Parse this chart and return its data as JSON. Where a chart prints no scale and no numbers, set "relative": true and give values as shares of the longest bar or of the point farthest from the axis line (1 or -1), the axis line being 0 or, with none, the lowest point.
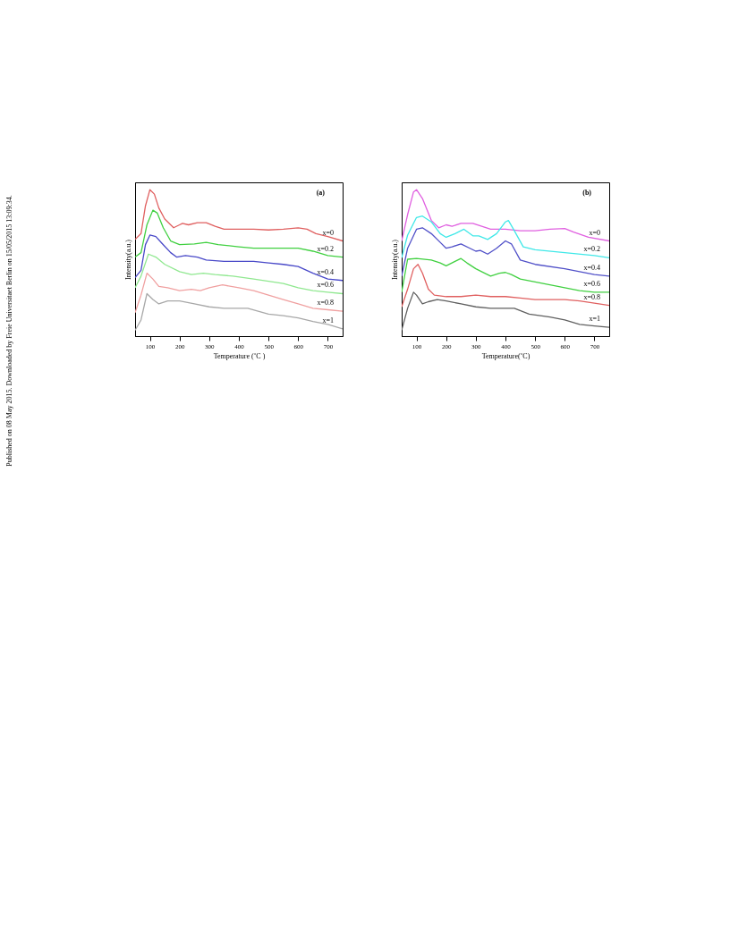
{
  "chart_data": [
    {
      "type": "line",
      "title": "(a)",
      "xlabel": "Temperature (˚C )",
      "ylabel": "Intensity(a.u.)",
      "relative": true,
      "xlim": [
        50,
        750
      ],
      "xticks": [
        100,
        200,
        300,
        400,
        500,
        600,
        700
      ],
      "tick_labels": "x",
      "grid": false,
      "marker": "none",
      "line_style": "solid",
      "annotations": [
        "Published on 08 May 2015. Downloaded by Freie Universitaet Berlin on 15/05/2015 13:09:34."
      ],
      "series": [
        {
          "name": "x=0",
          "color": "#e06060",
          "x": [
            50,
            70,
            85,
            100,
            115,
            130,
            150,
            180,
            200,
            210,
            230,
            260,
            290,
            320,
            350,
            400,
            450,
            500,
            550,
            600,
            630,
            660,
            700,
            750
          ],
          "values": [
            0.66,
            0.7,
            0.89,
            1.0,
            0.97,
            0.875,
            0.8,
            0.74,
            0.76,
            0.77,
            0.76,
            0.775,
            0.775,
            0.75,
            0.73,
            0.73,
            0.73,
            0.725,
            0.73,
            0.74,
            0.73,
            0.7,
            0.68,
            0.65
          ]
        },
        {
          "name": "x=0.2",
          "color": "#40d040",
          "x": [
            50,
            70,
            90,
            110,
            125,
            145,
            170,
            200,
            250,
            290,
            330,
            400,
            450,
            500,
            550,
            600,
            650,
            700,
            750
          ],
          "values": [
            0.54,
            0.57,
            0.76,
            0.86,
            0.84,
            0.74,
            0.65,
            0.625,
            0.63,
            0.64,
            0.625,
            0.61,
            0.6,
            0.6,
            0.6,
            0.6,
            0.58,
            0.55,
            0.54
          ]
        },
        {
          "name": "x=0.4",
          "color": "#4848c8",
          "x": [
            50,
            70,
            85,
            100,
            120,
            140,
            170,
            190,
            220,
            260,
            290,
            350,
            400,
            450,
            500,
            550,
            600,
            650,
            700,
            750
          ],
          "values": [
            0.4,
            0.45,
            0.625,
            0.69,
            0.68,
            0.635,
            0.57,
            0.54,
            0.55,
            0.54,
            0.52,
            0.51,
            0.51,
            0.51,
            0.5,
            0.49,
            0.475,
            0.43,
            0.39,
            0.38
          ]
        },
        {
          "name": "x=0.6",
          "color": "#90e890",
          "x": [
            50,
            70,
            95,
            120,
            150,
            200,
            240,
            280,
            320,
            380,
            450,
            500,
            550,
            600,
            650,
            700,
            750
          ],
          "values": [
            0.33,
            0.41,
            0.56,
            0.54,
            0.49,
            0.44,
            0.42,
            0.43,
            0.42,
            0.41,
            0.39,
            0.375,
            0.36,
            0.33,
            0.31,
            0.3,
            0.29
          ]
        },
        {
          "name": "x=0.8",
          "color": "#f0a0a0",
          "x": [
            50,
            70,
            90,
            110,
            130,
            160,
            200,
            240,
            270,
            300,
            345,
            400,
            450,
            500,
            550,
            600,
            650,
            700,
            750
          ],
          "values": [
            0.16,
            0.28,
            0.43,
            0.39,
            0.34,
            0.33,
            0.31,
            0.32,
            0.31,
            0.33,
            0.35,
            0.33,
            0.31,
            0.28,
            0.25,
            0.22,
            0.19,
            0.18,
            0.17
          ]
        },
        {
          "name": "x=1",
          "color": "#a8a8a8",
          "x": [
            50,
            70,
            90,
            110,
            130,
            160,
            200,
            250,
            300,
            350,
            400,
            430,
            500,
            550,
            600,
            650,
            700,
            750
          ],
          "values": [
            0.04,
            0.11,
            0.29,
            0.25,
            0.22,
            0.24,
            0.24,
            0.22,
            0.2,
            0.19,
            0.19,
            0.19,
            0.15,
            0.14,
            0.125,
            0.1,
            0.08,
            0.05
          ]
        }
      ]
    },
    {
      "type": "line",
      "title": "(b)",
      "xlabel": "Temperature(˚C)",
      "ylabel": "Intensity(a.u.)",
      "relative": true,
      "xlim": [
        50,
        750
      ],
      "xticks": [
        100,
        200,
        300,
        400,
        500,
        600,
        700
      ],
      "tick_labels": "x",
      "grid": false,
      "marker": "none",
      "line_style": "solid",
      "series": [
        {
          "name": "x=0",
          "color": "#e060e0",
          "x": [
            50,
            70,
            90,
            100,
            120,
            150,
            175,
            200,
            220,
            250,
            290,
            320,
            350,
            400,
            450,
            500,
            550,
            600,
            630,
            680,
            750
          ],
          "values": [
            0.65,
            0.83,
            0.985,
            1.0,
            0.94,
            0.79,
            0.74,
            0.76,
            0.75,
            0.77,
            0.77,
            0.75,
            0.73,
            0.73,
            0.72,
            0.72,
            0.73,
            0.735,
            0.71,
            0.675,
            0.65
          ]
        },
        {
          "name": "x=0.2",
          "color": "#40e8e8",
          "x": [
            50,
            70,
            100,
            120,
            150,
            180,
            200,
            230,
            260,
            290,
            310,
            340,
            370,
            400,
            410,
            430,
            460,
            500,
            600,
            700,
            750
          ],
          "values": [
            0.535,
            0.69,
            0.81,
            0.82,
            0.78,
            0.7,
            0.675,
            0.7,
            0.73,
            0.685,
            0.685,
            0.66,
            0.7,
            0.78,
            0.79,
            0.72,
            0.61,
            0.59,
            0.57,
            0.55,
            0.535
          ]
        },
        {
          "name": "x=0.4",
          "color": "#5050c8",
          "x": [
            50,
            70,
            100,
            120,
            150,
            180,
            200,
            220,
            250,
            280,
            300,
            315,
            340,
            370,
            400,
            420,
            450,
            500,
            600,
            700,
            750
          ],
          "values": [
            0.41,
            0.6,
            0.73,
            0.74,
            0.7,
            0.64,
            0.6,
            0.61,
            0.63,
            0.6,
            0.58,
            0.585,
            0.56,
            0.6,
            0.65,
            0.63,
            0.52,
            0.49,
            0.46,
            0.42,
            0.41
          ]
        },
        {
          "name": "x=0.6",
          "color": "#40d040",
          "x": [
            50,
            70,
            100,
            150,
            180,
            200,
            230,
            250,
            270,
            300,
            330,
            350,
            380,
            400,
            420,
            450,
            500,
            550,
            600,
            650,
            700,
            750
          ],
          "values": [
            0.3,
            0.525,
            0.53,
            0.52,
            0.5,
            0.48,
            0.51,
            0.53,
            0.5,
            0.46,
            0.43,
            0.41,
            0.43,
            0.435,
            0.42,
            0.39,
            0.37,
            0.35,
            0.33,
            0.31,
            0.3,
            0.3
          ]
        },
        {
          "name": "x=0.8",
          "color": "#e06060",
          "x": [
            50,
            70,
            90,
            105,
            120,
            140,
            160,
            200,
            250,
            300,
            350,
            400,
            450,
            500,
            600,
            650,
            700,
            750
          ],
          "values": [
            0.2,
            0.32,
            0.46,
            0.49,
            0.43,
            0.32,
            0.28,
            0.27,
            0.27,
            0.28,
            0.27,
            0.27,
            0.26,
            0.25,
            0.25,
            0.24,
            0.225,
            0.21
          ]
        },
        {
          "name": "x=1",
          "color": "#606060",
          "x": [
            50,
            70,
            90,
            100,
            120,
            140,
            170,
            200,
            250,
            300,
            350,
            400,
            430,
            480,
            550,
            600,
            650,
            700,
            750
          ],
          "values": [
            0.04,
            0.19,
            0.3,
            0.28,
            0.22,
            0.235,
            0.25,
            0.24,
            0.22,
            0.2,
            0.19,
            0.19,
            0.19,
            0.15,
            0.13,
            0.11,
            0.08,
            0.07,
            0.06
          ]
        }
      ]
    }
  ]
}
